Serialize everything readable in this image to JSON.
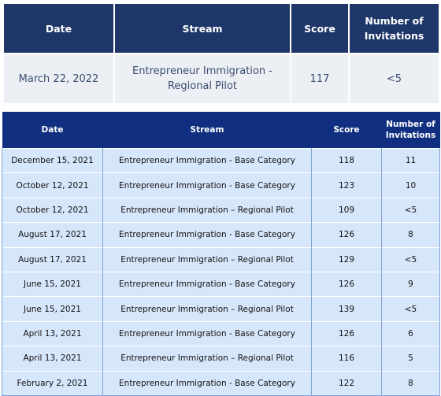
{
  "latest_draw": {
    "headers": {
      "date": "Date",
      "stream": "Stream",
      "score": "Score",
      "invitations": "Number of Invitations"
    },
    "row": {
      "date": "March 22, 2022",
      "stream": "Entrepreneur Immigration - Regional Pilot",
      "score": "117",
      "invitations": "<5"
    }
  },
  "past_draws": {
    "headers": {
      "date": "Date",
      "stream": "Stream",
      "score": "Score",
      "invitations": "Number of Invitations"
    },
    "rows": [
      {
        "date": "December 15, 2021",
        "stream": "Entrepreneur Immigration - Base Category",
        "score": "118",
        "invitations": "11"
      },
      {
        "date": "October 12, 2021",
        "stream": "Entrepreneur Immigration - Base Category",
        "score": "123",
        "invitations": "10"
      },
      {
        "date": "October 12, 2021",
        "stream": "Entrepreneur Immigration – Regional Pilot",
        "score": "109",
        "invitations": "<5"
      },
      {
        "date": "August 17, 2021",
        "stream": "Entrepreneur Immigration - Base Category",
        "score": "126",
        "invitations": "8"
      },
      {
        "date": "August 17, 2021",
        "stream": "Entrepreneur Immigration – Regional Pilot",
        "score": "129",
        "invitations": "<5"
      },
      {
        "date": "June 15, 2021",
        "stream": "Entrepreneur Immigration - Base Category",
        "score": "126",
        "invitations": "9"
      },
      {
        "date": "June 15, 2021",
        "stream": "Entrepreneur Immigration – Regional Pilot",
        "score": "139",
        "invitations": "<5"
      },
      {
        "date": "April 13, 2021",
        "stream": "Entrepreneur Immigration - Base Category",
        "score": "126",
        "invitations": "6"
      },
      {
        "date": "April 13, 2021",
        "stream": "Entrepreneur Immigration – Regional Pilot",
        "score": "116",
        "invitations": "5"
      },
      {
        "date": "February 2, 2021",
        "stream": "Entrepreneur Immigration - Base Category",
        "score": "122",
        "invitations": "8"
      }
    ]
  }
}
